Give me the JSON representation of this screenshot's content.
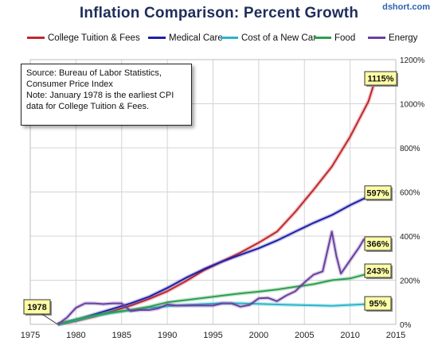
{
  "header": {
    "title": "Inflation Comparison: Percent Growth",
    "brand": "dshort.com"
  },
  "source_note": {
    "line1": "Source: Bureau of Labor Statistics,",
    "line2": "Consumer Price Index",
    "line3": "Note: January 1978  is the earliest CPI",
    "line4": "data for College Tuition & Fees."
  },
  "chart_data": {
    "type": "line",
    "title": "Inflation Comparison: Percent Growth",
    "xlabel": "",
    "ylabel": "",
    "xlim": [
      1975,
      2015
    ],
    "ylim": [
      0,
      1200
    ],
    "x_ticks": [
      1975,
      1980,
      1985,
      1990,
      1995,
      2000,
      2005,
      2010,
      2015
    ],
    "y_ticks": [
      0,
      200,
      400,
      600,
      800,
      1000,
      1200
    ],
    "y_tick_labels": [
      "0%",
      "200%",
      "400%",
      "600%",
      "800%",
      "1000%",
      "1200%"
    ],
    "grid": true,
    "legend_position": "top",
    "start_label": "1978",
    "series": [
      {
        "name": "College Tuition & Fees",
        "color": "#c0282d",
        "end_label": "1115%",
        "points": [
          [
            1978,
            0
          ],
          [
            1980,
            15
          ],
          [
            1982,
            35
          ],
          [
            1984,
            60
          ],
          [
            1986,
            85
          ],
          [
            1988,
            115
          ],
          [
            1990,
            150
          ],
          [
            1992,
            195
          ],
          [
            1994,
            245
          ],
          [
            1996,
            285
          ],
          [
            1998,
            325
          ],
          [
            2000,
            370
          ],
          [
            2002,
            420
          ],
          [
            2004,
            510
          ],
          [
            2006,
            610
          ],
          [
            2008,
            715
          ],
          [
            2010,
            850
          ],
          [
            2012,
            1010
          ],
          [
            2012.8,
            1115
          ]
        ]
      },
      {
        "name": "Medical Care",
        "color": "#1f1fa8",
        "end_label": "597%",
        "points": [
          [
            1978,
            0
          ],
          [
            1980,
            20
          ],
          [
            1982,
            45
          ],
          [
            1984,
            70
          ],
          [
            1986,
            95
          ],
          [
            1988,
            125
          ],
          [
            1990,
            165
          ],
          [
            1992,
            210
          ],
          [
            1994,
            250
          ],
          [
            1996,
            285
          ],
          [
            1998,
            315
          ],
          [
            2000,
            345
          ],
          [
            2002,
            380
          ],
          [
            2004,
            420
          ],
          [
            2006,
            460
          ],
          [
            2008,
            495
          ],
          [
            2010,
            540
          ],
          [
            2012,
            580
          ],
          [
            2012.8,
            597
          ]
        ]
      },
      {
        "name": "Cost of a New Car",
        "color": "#2bb5c9",
        "end_label": "95%",
        "points": [
          [
            1978,
            0
          ],
          [
            1980,
            18
          ],
          [
            1982,
            38
          ],
          [
            1984,
            52
          ],
          [
            1986,
            65
          ],
          [
            1988,
            75
          ],
          [
            1990,
            82
          ],
          [
            1992,
            88
          ],
          [
            1994,
            92
          ],
          [
            1996,
            96
          ],
          [
            1998,
            95
          ],
          [
            2000,
            93
          ],
          [
            2002,
            90
          ],
          [
            2004,
            88
          ],
          [
            2006,
            86
          ],
          [
            2008,
            84
          ],
          [
            2010,
            88
          ],
          [
            2012,
            92
          ],
          [
            2012.8,
            95
          ]
        ]
      },
      {
        "name": "Food",
        "color": "#2e9e4f",
        "end_label": "243%",
        "points": [
          [
            1978,
            0
          ],
          [
            1980,
            22
          ],
          [
            1982,
            40
          ],
          [
            1984,
            55
          ],
          [
            1986,
            65
          ],
          [
            1988,
            80
          ],
          [
            1990,
            100
          ],
          [
            1992,
            110
          ],
          [
            1994,
            120
          ],
          [
            1996,
            130
          ],
          [
            1998,
            140
          ],
          [
            2000,
            148
          ],
          [
            2002,
            158
          ],
          [
            2004,
            170
          ],
          [
            2006,
            182
          ],
          [
            2008,
            200
          ],
          [
            2010,
            208
          ],
          [
            2012,
            230
          ],
          [
            2012.8,
            243
          ]
        ]
      },
      {
        "name": "Energy",
        "color": "#6b3fa0",
        "end_label": "366%",
        "points": [
          [
            1978,
            0
          ],
          [
            1979,
            30
          ],
          [
            1980,
            75
          ],
          [
            1981,
            95
          ],
          [
            1982,
            95
          ],
          [
            1983,
            92
          ],
          [
            1984,
            95
          ],
          [
            1985,
            95
          ],
          [
            1986,
            60
          ],
          [
            1987,
            65
          ],
          [
            1988,
            65
          ],
          [
            1989,
            72
          ],
          [
            1990,
            90
          ],
          [
            1991,
            85
          ],
          [
            1992,
            85
          ],
          [
            1993,
            85
          ],
          [
            1994,
            85
          ],
          [
            1995,
            85
          ],
          [
            1996,
            95
          ],
          [
            1997,
            95
          ],
          [
            1998,
            80
          ],
          [
            1999,
            88
          ],
          [
            2000,
            118
          ],
          [
            2001,
            120
          ],
          [
            2002,
            105
          ],
          [
            2003,
            130
          ],
          [
            2004,
            150
          ],
          [
            2005,
            190
          ],
          [
            2006,
            225
          ],
          [
            2007,
            240
          ],
          [
            2008,
            420
          ],
          [
            2008.5,
            310
          ],
          [
            2009,
            230
          ],
          [
            2010,
            290
          ],
          [
            2011,
            350
          ],
          [
            2011.5,
            385
          ],
          [
            2012,
            380
          ],
          [
            2012.8,
            366
          ]
        ]
      }
    ]
  }
}
